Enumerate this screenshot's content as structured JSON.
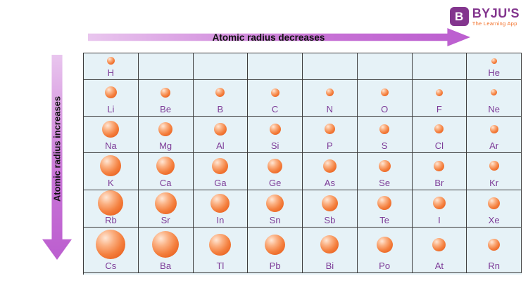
{
  "logo": {
    "icon_letter": "B",
    "name": "BYJU'S",
    "tagline": "The Learning App",
    "brand_purple": "#83358e",
    "brand_orange": "#f26c23"
  },
  "arrows": {
    "top_label": "Atomic radius decreases",
    "left_label": "Atomic radius increases",
    "color": "#bb5ecf"
  },
  "colors": {
    "cell_background": "#e6f2f7",
    "grid_border": "#3c3c3c",
    "sphere_orange": "#f4803f",
    "symbol_purple": "#7d3c98"
  },
  "periodic_table": {
    "columns": 8,
    "rows": [
      {
        "cells": [
          {
            "symbol": "H",
            "size": 11
          },
          null,
          null,
          null,
          null,
          null,
          null,
          {
            "symbol": "He",
            "size": 8
          }
        ]
      },
      {
        "cells": [
          {
            "symbol": "Li",
            "size": 17
          },
          {
            "symbol": "Be",
            "size": 14
          },
          {
            "symbol": "B",
            "size": 13
          },
          {
            "symbol": "C",
            "size": 12
          },
          {
            "symbol": "N",
            "size": 11
          },
          {
            "symbol": "O",
            "size": 11
          },
          {
            "symbol": "F",
            "size": 10
          },
          {
            "symbol": "Ne",
            "size": 9
          }
        ]
      },
      {
        "cells": [
          {
            "symbol": "Na",
            "size": 24
          },
          {
            "symbol": "Mg",
            "size": 20
          },
          {
            "symbol": "Al",
            "size": 18
          },
          {
            "symbol": "Si",
            "size": 16
          },
          {
            "symbol": "P",
            "size": 15
          },
          {
            "symbol": "S",
            "size": 14
          },
          {
            "symbol": "Cl",
            "size": 13
          },
          {
            "symbol": "Ar",
            "size": 12
          }
        ]
      },
      {
        "cells": [
          {
            "symbol": "K",
            "size": 30
          },
          {
            "symbol": "Ca",
            "size": 26
          },
          {
            "symbol": "Ga",
            "size": 23
          },
          {
            "symbol": "Ge",
            "size": 21
          },
          {
            "symbol": "As",
            "size": 19
          },
          {
            "symbol": "Se",
            "size": 17
          },
          {
            "symbol": "Br",
            "size": 15
          },
          {
            "symbol": "Kr",
            "size": 14
          }
        ]
      },
      {
        "cells": [
          {
            "symbol": "Rb",
            "size": 36
          },
          {
            "symbol": "Sr",
            "size": 31
          },
          {
            "symbol": "In",
            "size": 27
          },
          {
            "symbol": "Sn",
            "size": 25
          },
          {
            "symbol": "Sb",
            "size": 23
          },
          {
            "symbol": "Te",
            "size": 20
          },
          {
            "symbol": "I",
            "size": 18
          },
          {
            "symbol": "Xe",
            "size": 17
          }
        ]
      },
      {
        "cells": [
          {
            "symbol": "Cs",
            "size": 42
          },
          {
            "symbol": "Ba",
            "size": 38
          },
          {
            "symbol": "Tl",
            "size": 31
          },
          {
            "symbol": "Pb",
            "size": 29
          },
          {
            "symbol": "Bi",
            "size": 26
          },
          {
            "symbol": "Po",
            "size": 23
          },
          {
            "symbol": "At",
            "size": 19
          },
          {
            "symbol": "Rn",
            "size": 17
          }
        ]
      }
    ]
  }
}
